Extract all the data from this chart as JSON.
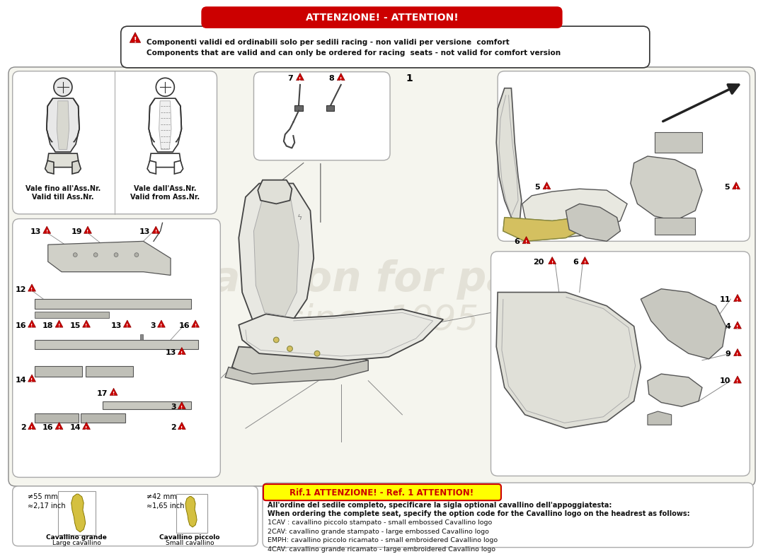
{
  "title": "ATTENZIONE! - ATTENTION!",
  "bg_color": "#ffffff",
  "page_bg": "#f5f5ee",
  "warning_line1": "Componenti validi ed ordinabili solo per sedili racing - non validi per versione  comfort",
  "warning_line2": "Components that are valid and can only be ordered for racing  seats - not valid for comfort version",
  "ref_text": "Rif.1 ATTENZIONE! - Ref. 1 ATTENTION!",
  "bottom_lines": [
    "All'ordine del sedile completo, specificare la sigla optional cavallino dell'appoggiatesta:",
    "When ordering the complete seat, specify the option code for the Cavallino logo on the headrest as follows:",
    "1CAV : cavallino piccolo stampato - small embossed Cavallino logo",
    "2CAV: cavallino grande stampato - large embossed Cavallino logo",
    "EMPH: cavallino piccolo ricamato - small embroidered Cavallino logo",
    "4CAV: cavallino grande ricamato - large embroidered Cavallino logo"
  ],
  "watermark": "Passion for parts\nsince 1995",
  "left_caption1": "Vale fino all'Ass.Nr.\nValid till Ass.Nr.",
  "left_caption2": "Vale dall'Ass.Nr.\nValid from Ass.Nr.",
  "logo_caption1a": "Cavallino grande",
  "logo_caption1b": "Large cavallino",
  "logo_caption2a": "Cavallino piccolo",
  "logo_caption2b": "Small cavallino",
  "meas1a": "≠55 mm",
  "meas1b": "≈2,17 inch",
  "meas2a": "≠42 mm",
  "meas2b": "≈1,65 inch"
}
